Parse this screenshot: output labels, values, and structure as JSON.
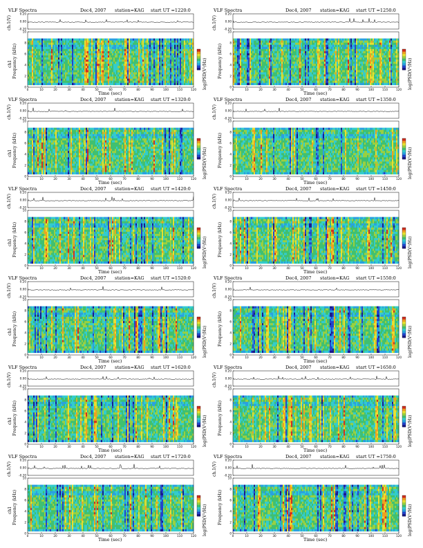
{
  "colors": {
    "colormap": [
      "#1a1a8a",
      "#2244cc",
      "#2aa0e0",
      "#33cccc",
      "#40c070",
      "#9ad040",
      "#e8e030",
      "#f0a020",
      "#d03020"
    ],
    "background": "#ffffff",
    "trace": "#000000"
  },
  "panels": [
    {
      "title": "VLF Spectra",
      "date": "Dec4, 2007",
      "station": "station=KAG",
      "start": "start  UT  =1220:0",
      "ch_label": "ch.1(V)",
      "ch1_label": "ch1",
      "freq_label": "Frequency  (kHz)",
      "cb_label": "log(PSD(V²/Hz)",
      "xlabel": "Time  (sec)"
    },
    {
      "title": "VLF Spectra",
      "date": "Dec4, 2007",
      "station": "station=KAG",
      "start": "start  UT  =1250:0",
      "ch_label": "ch.1(V)",
      "ch1_label": "",
      "freq_label": "Frequency  (kHz)",
      "cb_label": "log(PSD(V²/Hz)",
      "xlabel": "Time  (sec)"
    },
    {
      "title": "VLF Spectra",
      "date": "Dec4, 2007",
      "station": "station=KAG",
      "start": "start  UT  =1320:0",
      "ch_label": "ch.1(V)",
      "ch1_label": "ch1",
      "freq_label": "Frequency  (kHz)",
      "cb_label": "log(PSD(V²/Hz)",
      "xlabel": "Time  (sec)"
    },
    {
      "title": "VLF Spectra",
      "date": "Dec4, 2007",
      "station": "station=KAG",
      "start": "start  UT  =1350:0",
      "ch_label": "ch.1(V)",
      "ch1_label": "",
      "freq_label": "Frequency  (kHz)",
      "cb_label": "log(PSD(V²/Hz)",
      "xlabel": "Time  (sec)"
    },
    {
      "title": "VLF Spectra",
      "date": "Dec4, 2007",
      "station": "station=KAG",
      "start": "start  UT  =1420:0",
      "ch_label": "ch.1(V)",
      "ch1_label": "ch1",
      "freq_label": "Frequency  (kHz)",
      "cb_label": "log(PSD(V²/Hz)",
      "xlabel": "Time  (sec)"
    },
    {
      "title": "VLF Spectra",
      "date": "Dec4, 2007",
      "station": "station=KAG",
      "start": "start  UT  =1450:0",
      "ch_label": "ch.1(V)",
      "ch1_label": "",
      "freq_label": "Frequency  (kHz)",
      "cb_label": "log(PSD(V²/Hz)",
      "xlabel": "Time  (sec)"
    },
    {
      "title": "VLF Spectra",
      "date": "Dec4, 2007",
      "station": "station=KAG",
      "start": "start  UT  =1520:0",
      "ch_label": "ch.1(V)",
      "ch1_label": "ch1",
      "freq_label": "Frequency  (kHz)",
      "cb_label": "log(PSD(V²/Hz)",
      "xlabel": "Time  (sec)"
    },
    {
      "title": "VLF Spectra",
      "date": "Dec4, 2007",
      "station": "station=KAG",
      "start": "start  UT  =1550:0",
      "ch_label": "ch.1(V)",
      "ch1_label": "",
      "freq_label": "Frequency  (kHz)",
      "cb_label": "log(PSD(V²/Hz)",
      "xlabel": "Time  (sec)"
    },
    {
      "title": "VLF Spectra",
      "date": "Dec4, 2007",
      "station": "station=KAG",
      "start": "start  UT  =1620:0",
      "ch_label": "ch.1(V)",
      "ch1_label": "ch1",
      "freq_label": "Frequency  (kHz)",
      "cb_label": "log(PSD(V²/Hz)",
      "xlabel": "Time  (sec)"
    },
    {
      "title": "VLF Spectra",
      "date": "Dec4, 2007",
      "station": "station=KAG",
      "start": "start  UT  =1650:0",
      "ch_label": "ch.1(V)",
      "ch1_label": "",
      "freq_label": "Frequency  (kHz)",
      "cb_label": "log(PSD(V²/Hz)",
      "xlabel": "Time  (sec)"
    },
    {
      "title": "VLF Spectra",
      "date": "Dec4, 2007",
      "station": "station=KAG",
      "start": "start  UT  =1720:0",
      "ch_label": "ch.1(V)",
      "ch1_label": "ch1",
      "freq_label": "Frequency  (kHz)",
      "cb_label": "log(PSD(V²/Hz)",
      "xlabel": "Time  (sec)"
    },
    {
      "title": "VLF Spectra",
      "date": "Dec4, 2007",
      "station": "station=KAG",
      "start": "start  UT  =1750:0",
      "ch_label": "ch.1(V)",
      "ch1_label": "",
      "freq_label": "Frequency  (kHz)",
      "cb_label": "log(PSD(V²/Hz)",
      "xlabel": "Time  (sec)"
    }
  ],
  "chart_data": {
    "type": "heatmap",
    "x_ticks": [
      "0",
      "10",
      "20",
      "30",
      "40",
      "50",
      "60",
      "70",
      "80",
      "90",
      "100",
      "110",
      "120"
    ],
    "xlim": [
      0,
      120
    ],
    "freq_ticks": [
      "0",
      "2",
      "4",
      "6",
      "8",
      "10"
    ],
    "ylim": [
      0,
      10
    ],
    "trace_ticks": [
      "0.20",
      "0.00",
      "-0.20"
    ],
    "trace_ylim": [
      -0.2,
      0.2
    ],
    "panel_count": 12,
    "layout": "6 rows x 2 columns",
    "grid": false
  }
}
